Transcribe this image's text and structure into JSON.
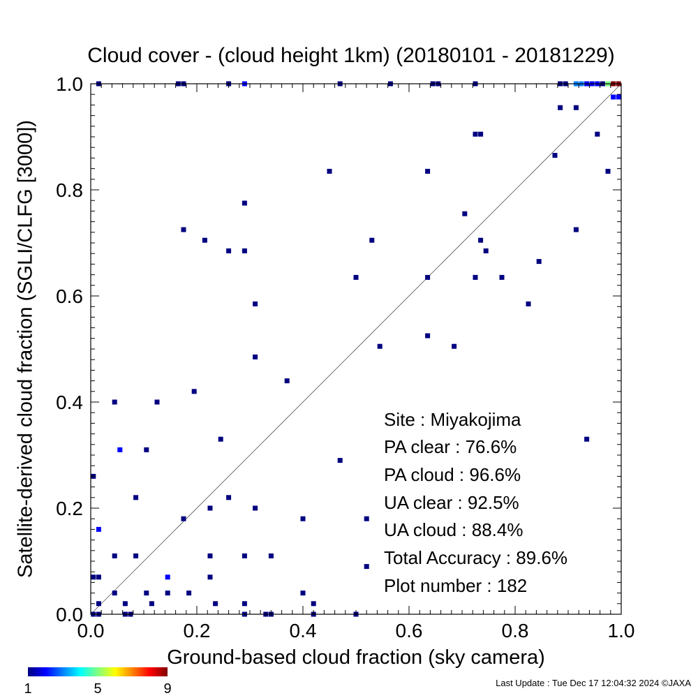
{
  "chart_data": {
    "type": "scatter",
    "title": "Cloud cover - (cloud height 1km)  (20180101 - 20181229)",
    "xlabel": "Ground-based cloud fraction (sky camera)",
    "ylabel": "Satellite-derived cloud fraction (SGLI/CLFG [3000])",
    "xlim": [
      0,
      1
    ],
    "ylim": [
      0,
      1
    ],
    "x_ticks": [
      "0.0",
      "0.2",
      "0.4",
      "0.6",
      "0.8",
      "1.0"
    ],
    "y_ticks": [
      "0.0",
      "0.2",
      "0.4",
      "0.6",
      "0.8",
      "1.0"
    ],
    "reference_line": "1:1 diagonal",
    "grid": false,
    "stats": [
      "Site : Miyakojima",
      "PA clear :  76.6%",
      "PA cloud :  96.6%",
      "UA clear :  92.5%",
      "UA cloud :  88.4%",
      "Total Accuracy :  89.6%",
      "Plot number :       182"
    ],
    "colorbar": {
      "labels": [
        "1",
        "5",
        "9"
      ],
      "min": 1,
      "max": 9,
      "colors": [
        "#000080",
        "#0000ff",
        "#0080ff",
        "#00ffff",
        "#80ff80",
        "#ffff00",
        "#ff8000",
        "#ff0000",
        "#800000"
      ]
    },
    "points": [
      {
        "x": 0.015,
        "y": 1.0,
        "n": 1
      },
      {
        "x": 0.165,
        "y": 1.0,
        "n": 1
      },
      {
        "x": 0.175,
        "y": 1.0,
        "n": 1
      },
      {
        "x": 0.26,
        "y": 1.0,
        "n": 1
      },
      {
        "x": 0.29,
        "y": 1.0,
        "n": 2
      },
      {
        "x": 0.47,
        "y": 1.0,
        "n": 1
      },
      {
        "x": 0.565,
        "y": 1.0,
        "n": 1
      },
      {
        "x": 0.645,
        "y": 1.0,
        "n": 1
      },
      {
        "x": 0.655,
        "y": 1.0,
        "n": 1
      },
      {
        "x": 0.725,
        "y": 1.0,
        "n": 1
      },
      {
        "x": 0.885,
        "y": 1.0,
        "n": 1
      },
      {
        "x": 0.895,
        "y": 1.0,
        "n": 1
      },
      {
        "x": 0.915,
        "y": 1.0,
        "n": 3
      },
      {
        "x": 0.925,
        "y": 1.0,
        "n": 3
      },
      {
        "x": 0.935,
        "y": 1.0,
        "n": 2
      },
      {
        "x": 0.945,
        "y": 1.0,
        "n": 2
      },
      {
        "x": 0.955,
        "y": 1.0,
        "n": 2
      },
      {
        "x": 0.965,
        "y": 1.0,
        "n": 1
      },
      {
        "x": 0.975,
        "y": 1.0,
        "n": 5
      },
      {
        "x": 0.985,
        "y": 1.0,
        "n": 9
      },
      {
        "x": 0.995,
        "y": 1.0,
        "n": 9
      },
      {
        "x": 0.985,
        "y": 0.975,
        "n": 2
      },
      {
        "x": 0.995,
        "y": 0.975,
        "n": 2
      },
      {
        "x": 0.885,
        "y": 0.955,
        "n": 1
      },
      {
        "x": 0.915,
        "y": 0.955,
        "n": 1
      },
      {
        "x": 0.725,
        "y": 0.905,
        "n": 1
      },
      {
        "x": 0.735,
        "y": 0.905,
        "n": 1
      },
      {
        "x": 0.955,
        "y": 0.905,
        "n": 1
      },
      {
        "x": 0.875,
        "y": 0.865,
        "n": 1
      },
      {
        "x": 0.45,
        "y": 0.835,
        "n": 1
      },
      {
        "x": 0.635,
        "y": 0.835,
        "n": 1
      },
      {
        "x": 0.975,
        "y": 0.835,
        "n": 1
      },
      {
        "x": 0.29,
        "y": 0.775,
        "n": 1
      },
      {
        "x": 0.705,
        "y": 0.755,
        "n": 1
      },
      {
        "x": 0.175,
        "y": 0.725,
        "n": 1
      },
      {
        "x": 0.915,
        "y": 0.725,
        "n": 1
      },
      {
        "x": 0.215,
        "y": 0.705,
        "n": 1
      },
      {
        "x": 0.53,
        "y": 0.705,
        "n": 1
      },
      {
        "x": 0.735,
        "y": 0.705,
        "n": 1
      },
      {
        "x": 0.26,
        "y": 0.685,
        "n": 1
      },
      {
        "x": 0.29,
        "y": 0.685,
        "n": 1
      },
      {
        "x": 0.745,
        "y": 0.685,
        "n": 1
      },
      {
        "x": 0.845,
        "y": 0.665,
        "n": 1
      },
      {
        "x": 0.5,
        "y": 0.635,
        "n": 1
      },
      {
        "x": 0.635,
        "y": 0.635,
        "n": 1
      },
      {
        "x": 0.725,
        "y": 0.635,
        "n": 1
      },
      {
        "x": 0.775,
        "y": 0.635,
        "n": 1
      },
      {
        "x": 0.31,
        "y": 0.585,
        "n": 1
      },
      {
        "x": 0.825,
        "y": 0.585,
        "n": 1
      },
      {
        "x": 0.635,
        "y": 0.525,
        "n": 1
      },
      {
        "x": 0.545,
        "y": 0.505,
        "n": 1
      },
      {
        "x": 0.685,
        "y": 0.505,
        "n": 1
      },
      {
        "x": 0.31,
        "y": 0.485,
        "n": 1
      },
      {
        "x": 0.37,
        "y": 0.44,
        "n": 1
      },
      {
        "x": 0.195,
        "y": 0.42,
        "n": 1
      },
      {
        "x": 0.045,
        "y": 0.4,
        "n": 1
      },
      {
        "x": 0.125,
        "y": 0.4,
        "n": 1
      },
      {
        "x": 0.245,
        "y": 0.33,
        "n": 1
      },
      {
        "x": 0.935,
        "y": 0.33,
        "n": 1
      },
      {
        "x": 0.055,
        "y": 0.31,
        "n": 2
      },
      {
        "x": 0.105,
        "y": 0.31,
        "n": 1
      },
      {
        "x": 0.47,
        "y": 0.29,
        "n": 1
      },
      {
        "x": 0.005,
        "y": 0.26,
        "n": 1
      },
      {
        "x": 0.085,
        "y": 0.22,
        "n": 1
      },
      {
        "x": 0.26,
        "y": 0.22,
        "n": 1
      },
      {
        "x": 0.225,
        "y": 0.2,
        "n": 1
      },
      {
        "x": 0.31,
        "y": 0.2,
        "n": 1
      },
      {
        "x": 0.175,
        "y": 0.18,
        "n": 1
      },
      {
        "x": 0.4,
        "y": 0.18,
        "n": 1
      },
      {
        "x": 0.52,
        "y": 0.18,
        "n": 1
      },
      {
        "x": 0.015,
        "y": 0.16,
        "n": 2
      },
      {
        "x": 0.045,
        "y": 0.11,
        "n": 1
      },
      {
        "x": 0.085,
        "y": 0.11,
        "n": 1
      },
      {
        "x": 0.225,
        "y": 0.11,
        "n": 1
      },
      {
        "x": 0.29,
        "y": 0.11,
        "n": 1
      },
      {
        "x": 0.34,
        "y": 0.11,
        "n": 1
      },
      {
        "x": 0.52,
        "y": 0.09,
        "n": 1
      },
      {
        "x": 0.005,
        "y": 0.07,
        "n": 1
      },
      {
        "x": 0.015,
        "y": 0.07,
        "n": 1
      },
      {
        "x": 0.145,
        "y": 0.07,
        "n": 2
      },
      {
        "x": 0.225,
        "y": 0.07,
        "n": 1
      },
      {
        "x": 0.045,
        "y": 0.04,
        "n": 1
      },
      {
        "x": 0.105,
        "y": 0.04,
        "n": 1
      },
      {
        "x": 0.145,
        "y": 0.04,
        "n": 1
      },
      {
        "x": 0.185,
        "y": 0.04,
        "n": 1
      },
      {
        "x": 0.4,
        "y": 0.04,
        "n": 1
      },
      {
        "x": 0.015,
        "y": 0.02,
        "n": 1
      },
      {
        "x": 0.065,
        "y": 0.02,
        "n": 1
      },
      {
        "x": 0.115,
        "y": 0.02,
        "n": 1
      },
      {
        "x": 0.235,
        "y": 0.02,
        "n": 1
      },
      {
        "x": 0.29,
        "y": 0.02,
        "n": 1
      },
      {
        "x": 0.42,
        "y": 0.02,
        "n": 1
      },
      {
        "x": 0.005,
        "y": 0.0,
        "n": 1
      },
      {
        "x": 0.015,
        "y": 0.0,
        "n": 1
      },
      {
        "x": 0.065,
        "y": 0.0,
        "n": 1
      },
      {
        "x": 0.075,
        "y": 0.0,
        "n": 1
      },
      {
        "x": 0.29,
        "y": 0.0,
        "n": 1
      },
      {
        "x": 0.33,
        "y": 0.0,
        "n": 1
      },
      {
        "x": 0.34,
        "y": 0.0,
        "n": 1
      },
      {
        "x": 0.42,
        "y": 0.0,
        "n": 1
      },
      {
        "x": 0.5,
        "y": 0.0,
        "n": 1
      }
    ]
  },
  "footer": {
    "last_update": "Last Update : Tue Dec 17 12:04:32 2024  ©JAXA"
  }
}
